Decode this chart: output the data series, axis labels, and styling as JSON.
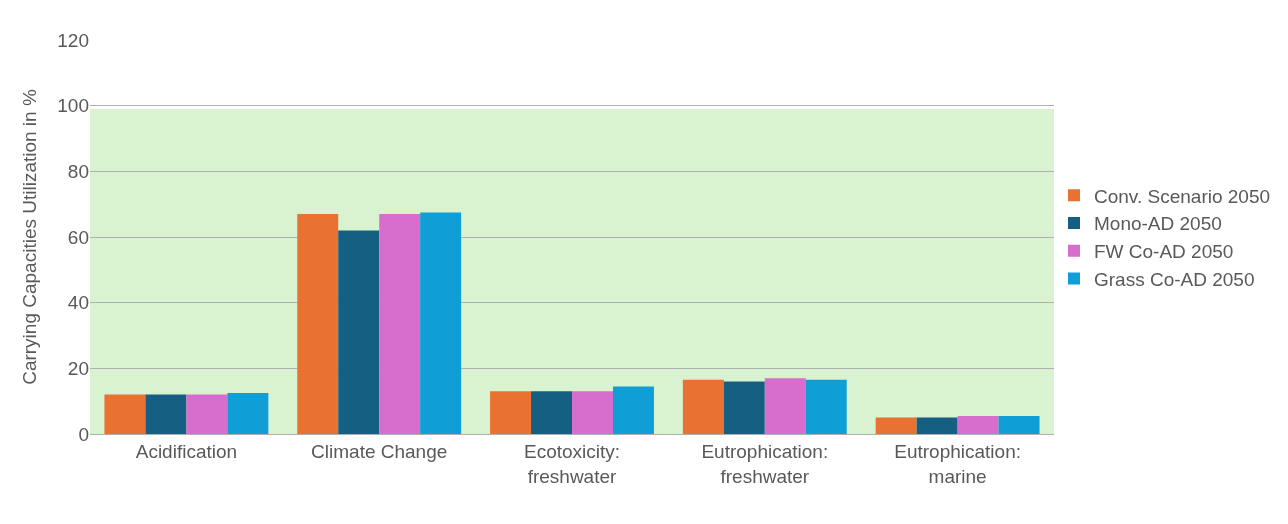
{
  "chart_data": {
    "type": "bar",
    "ylabel": "Carrying Capacities Utilization in %",
    "categories": [
      "Acidification",
      "Climate Change",
      "Ecotoxicity: freshwater",
      "Eutrophication: freshwater",
      "Eutrophication: marine"
    ],
    "series": [
      {
        "name": "Conv. Scenario 2050",
        "color": "#e97132",
        "values": [
          12,
          67,
          13,
          16.5,
          5
        ]
      },
      {
        "name": "Mono-AD 2050",
        "color": "#156082",
        "values": [
          12,
          62,
          13,
          16,
          5
        ]
      },
      {
        "name": "FW Co-AD 2050",
        "color": "#d76dcc",
        "values": [
          12,
          67,
          13,
          17,
          5.5
        ]
      },
      {
        "name": "Grass Co-AD 2050",
        "color": "#0f9ed5",
        "values": [
          12.5,
          67.5,
          14.5,
          16.5,
          5.5
        ]
      }
    ],
    "ylim": [
      0,
      120
    ],
    "yticks": [
      0,
      20,
      40,
      60,
      80,
      100,
      120
    ],
    "grid": "y",
    "legend": "right",
    "bands": [
      {
        "axis": "y",
        "from": 0,
        "to": 99,
        "color": "#d9f2d0"
      }
    ]
  }
}
